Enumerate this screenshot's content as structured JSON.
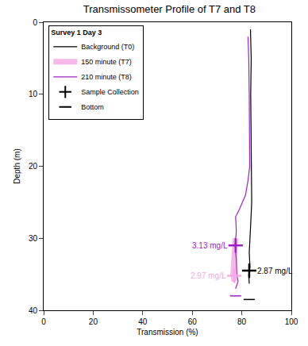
{
  "chart_data": {
    "type": "line",
    "title": "Transmissometer Profile of T7 and T8",
    "x_label": "Transmission (%)",
    "y_label": "Depth (m)",
    "xlim": [
      0,
      100
    ],
    "xticks": [
      0,
      20,
      40,
      60,
      80,
      100
    ],
    "ylim": [
      40,
      0
    ],
    "yticks": [
      0,
      10,
      20,
      30,
      40
    ],
    "grid": false,
    "legend": "upper left",
    "legend_title": "Survey 1 Day 3",
    "series": [
      {
        "name": "Background (T0)",
        "color": "#000000",
        "line_style": "solid",
        "x": [
          83.5,
          83.8,
          83.6,
          83.8,
          83.9,
          84.0,
          83.6,
          83.2,
          83.0,
          83.3,
          82.8,
          83.0
        ],
        "y": [
          1,
          5,
          10,
          15,
          20,
          25,
          28,
          30,
          32,
          34,
          35,
          36.3
        ]
      },
      {
        "name": "150 minute (T7)",
        "color": "#f4a6e6",
        "line_style": "thick",
        "x": [
          77.5,
          77.0,
          77.0,
          76.5,
          77.0
        ],
        "y": [
          30,
          32,
          34,
          35,
          36
        ]
      },
      {
        "name": "210 minute (T8)",
        "color": "#a020c8",
        "line_style": "solid",
        "x": [
          82.5,
          82.8,
          83.0,
          83.0,
          83.2,
          82.5,
          81.5,
          79.0,
          77.5,
          77.8,
          77.3,
          77.8,
          78.0,
          78.5,
          77.5
        ],
        "y": [
          2,
          5,
          10,
          15,
          20,
          22,
          24,
          26,
          27,
          29,
          31,
          33,
          35,
          36,
          37
        ]
      }
    ],
    "samples": {
      "name": "Sample Collection",
      "marker": "cross",
      "color": "#000000",
      "points": [
        {
          "x": 83.0,
          "y": 34.5,
          "label": "2.87 mg/L",
          "color": "#000000",
          "side": "right"
        },
        {
          "x": 77.5,
          "y": 31.0,
          "label": "3.13 mg/L",
          "color": "#a020c8",
          "side": "left"
        },
        {
          "x": 77.0,
          "y": 35.2,
          "label": "2.97 mg/L",
          "color": "#f4a6e6",
          "side": "left"
        }
      ]
    },
    "bottom": {
      "name": "Bottom",
      "marker": "bar",
      "color": "#000000",
      "points": [
        {
          "x": 83.0,
          "y": 38.5,
          "color": "#000000"
        },
        {
          "x": 77.5,
          "y": 38.0,
          "color": "#a020c8"
        }
      ]
    }
  }
}
